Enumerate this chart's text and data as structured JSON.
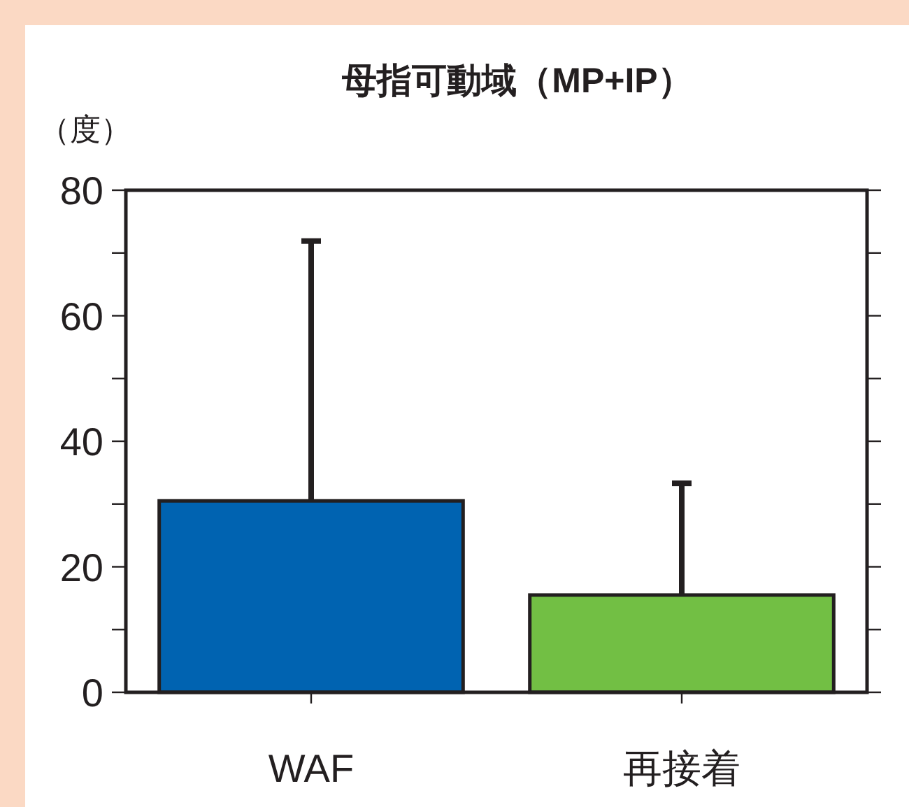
{
  "chart_data": {
    "type": "bar",
    "title": "母指可動域（MP+IP）",
    "ylabel": "（度）",
    "categories": [
      "WAF",
      "再接着"
    ],
    "values": [
      30.5,
      15.5
    ],
    "colors": [
      "#0063b1",
      "#72bf44"
    ],
    "errors": [
      [
        30.5,
        71.9
      ],
      [
        15.5,
        33.3
      ]
    ],
    "ylim": [
      0,
      80
    ],
    "yticks": [
      0,
      {
        "value": 10,
        "label": null
      },
      20,
      {
        "value": 30,
        "label": null
      },
      40,
      {
        "value": 50,
        "label": null
      },
      60,
      {
        "value": 70,
        "label": null
      },
      80
    ],
    "grid": false
  }
}
